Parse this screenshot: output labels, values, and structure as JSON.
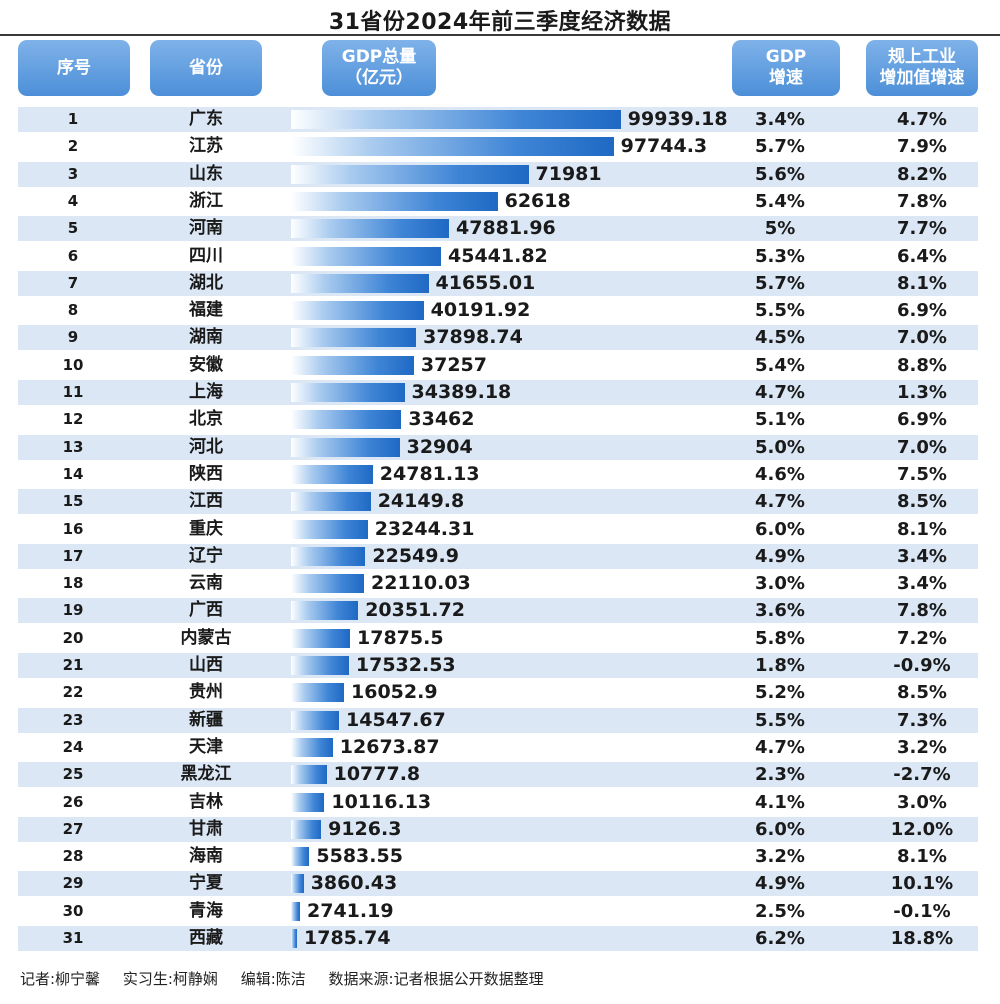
{
  "title": "31省份2024年前三季度经济数据",
  "headers": {
    "rank": "序号",
    "province": "省份",
    "gdp": "GDP总量\n（亿元）",
    "growth": "GDP\n增速",
    "industry": "规上工业\n增加值增速"
  },
  "chart_data": {
    "type": "bar",
    "title": "31省份2024年前三季度经济数据",
    "ylabel": "GDP总量（亿元）",
    "xlim": [
      0,
      100000
    ],
    "categories": [
      "广东",
      "江苏",
      "山东",
      "浙江",
      "河南",
      "四川",
      "湖北",
      "福建",
      "湖南",
      "安徽",
      "上海",
      "北京",
      "河北",
      "陕西",
      "江西",
      "重庆",
      "辽宁",
      "云南",
      "广西",
      "内蒙古",
      "山西",
      "贵州",
      "新疆",
      "天津",
      "黑龙江",
      "吉林",
      "甘肃",
      "海南",
      "宁夏",
      "青海",
      "西藏"
    ],
    "values": [
      99939.18,
      97744.3,
      71981,
      62618,
      47881.96,
      45441.82,
      41655.01,
      40191.92,
      37898.74,
      37257,
      34389.18,
      33462,
      32904,
      24781.13,
      24149.8,
      23244.31,
      22549.9,
      22110.03,
      20351.72,
      17875.5,
      17532.53,
      16052.9,
      14547.67,
      12673.87,
      10777.8,
      10116.13,
      9126.3,
      5583.55,
      3860.43,
      2741.19,
      1785.74
    ],
    "value_labels": [
      "99939.18",
      "97744.3",
      "71981",
      "62618",
      "47881.96",
      "45441.82",
      "41655.01",
      "40191.92",
      "37898.74",
      "37257",
      "34389.18",
      "33462",
      "32904",
      "24781.13",
      "24149.8",
      "23244.31",
      "22549.9",
      "22110.03",
      "20351.72",
      "17875.5",
      "17532.53",
      "16052.9",
      "14547.67",
      "12673.87",
      "10777.8",
      "10116.13",
      "9126.3",
      "5583.55",
      "3860.43",
      "2741.19",
      "1785.74"
    ],
    "ranks": [
      "1",
      "2",
      "3",
      "4",
      "5",
      "6",
      "7",
      "8",
      "9",
      "10",
      "11",
      "12",
      "13",
      "14",
      "15",
      "16",
      "17",
      "18",
      "19",
      "20",
      "21",
      "22",
      "23",
      "24",
      "25",
      "26",
      "27",
      "28",
      "29",
      "30",
      "31"
    ],
    "gdp_growth": [
      "3.4%",
      "5.7%",
      "5.6%",
      "5.4%",
      "5%",
      "5.3%",
      "5.7%",
      "5.5%",
      "4.5%",
      "5.4%",
      "4.7%",
      "5.1%",
      "5.0%",
      "4.6%",
      "4.7%",
      "6.0%",
      "4.9%",
      "3.0%",
      "3.6%",
      "5.8%",
      "1.8%",
      "5.2%",
      "5.5%",
      "4.7%",
      "2.3%",
      "4.1%",
      "6.0%",
      "3.2%",
      "4.9%",
      "2.5%",
      "6.2%"
    ],
    "industrial_growth": [
      "4.7%",
      "7.9%",
      "8.2%",
      "7.8%",
      "7.7%",
      "6.4%",
      "8.1%",
      "6.9%",
      "7.0%",
      "8.8%",
      "1.3%",
      "6.9%",
      "7.0%",
      "7.5%",
      "8.5%",
      "8.1%",
      "3.4%",
      "3.4%",
      "7.8%",
      "7.2%",
      "-0.9%",
      "8.5%",
      "7.3%",
      "3.2%",
      "-2.7%",
      "3.0%",
      "12.0%",
      "8.1%",
      "10.1%",
      "-0.1%",
      "18.8%"
    ]
  },
  "footer": {
    "reporter": "记者:柳宁馨",
    "intern": "实习生:柯静娴",
    "editor": "编辑:陈洁",
    "source": "数据来源:记者根据公开数据整理"
  }
}
